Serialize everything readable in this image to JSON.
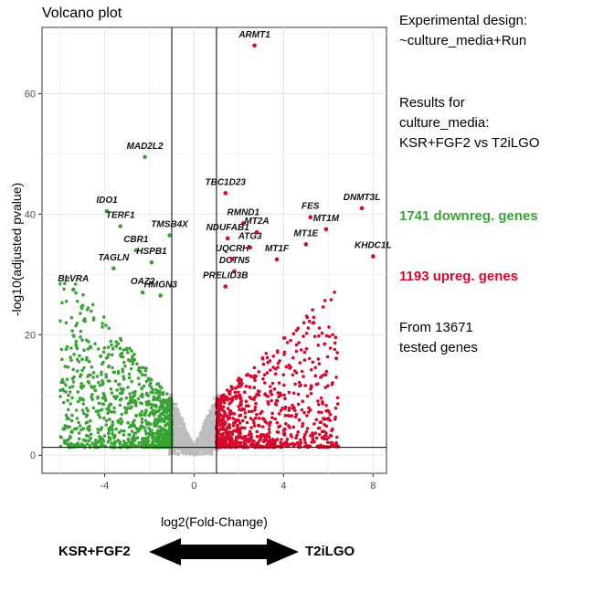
{
  "chart_data": {
    "type": "scatter",
    "title": "Volcano plot",
    "xlabel": "log2(Fold-Change)",
    "ylabel": "-log10(adjusted pvalue)",
    "xlim": [
      -6.8,
      8.6
    ],
    "ylim": [
      -3,
      71
    ],
    "xticks": [
      -4,
      0,
      4,
      8
    ],
    "yticks": [
      0,
      20,
      40,
      60
    ],
    "grid": true,
    "thresholds": {
      "fold_change_lines": [
        -1,
        1
      ],
      "pvalue_line": 1.3
    },
    "colors": {
      "down": "#3aa335",
      "up": "#d7082e",
      "ns": "#bdbdbd"
    },
    "labeled_genes": [
      {
        "gene": "ARMT1",
        "x": 2.7,
        "y": 68.0,
        "group": "up"
      },
      {
        "gene": "MAD2L2",
        "x": -2.2,
        "y": 49.5,
        "group": "down"
      },
      {
        "gene": "TBC1D23",
        "x": 1.4,
        "y": 43.5,
        "group": "up"
      },
      {
        "gene": "IDO1",
        "x": -3.9,
        "y": 40.5,
        "group": "down"
      },
      {
        "gene": "FES",
        "x": 5.2,
        "y": 39.5,
        "group": "up"
      },
      {
        "gene": "DNMT3L",
        "x": 7.5,
        "y": 41.0,
        "group": "up"
      },
      {
        "gene": "RMND1",
        "x": 2.2,
        "y": 38.5,
        "group": "up"
      },
      {
        "gene": "TMSB4X",
        "x": -1.1,
        "y": 36.5,
        "group": "down"
      },
      {
        "gene": "TERF1",
        "x": -3.3,
        "y": 38.0,
        "group": "down"
      },
      {
        "gene": "MT2A",
        "x": 2.8,
        "y": 37.0,
        "group": "up"
      },
      {
        "gene": "NDUFAB1",
        "x": 1.5,
        "y": 36.0,
        "group": "up"
      },
      {
        "gene": "MT1E",
        "x": 5.0,
        "y": 35.0,
        "group": "up"
      },
      {
        "gene": "MT1M",
        "x": 5.9,
        "y": 37.5,
        "group": "up"
      },
      {
        "gene": "CBR1",
        "x": -2.6,
        "y": 34.0,
        "group": "down"
      },
      {
        "gene": "ATG3",
        "x": 2.5,
        "y": 34.5,
        "group": "up"
      },
      {
        "gene": "UQCRH",
        "x": 1.7,
        "y": 32.5,
        "group": "up"
      },
      {
        "gene": "HSPB1",
        "x": -1.9,
        "y": 32.0,
        "group": "down"
      },
      {
        "gene": "MT1F",
        "x": 3.7,
        "y": 32.5,
        "group": "up"
      },
      {
        "gene": "TAGLN",
        "x": -3.6,
        "y": 31.0,
        "group": "down"
      },
      {
        "gene": "KHDC1L",
        "x": 8.0,
        "y": 33.0,
        "group": "up"
      },
      {
        "gene": "DCTN5",
        "x": 1.8,
        "y": 30.5,
        "group": "up"
      },
      {
        "gene": "PRELID3B",
        "x": 1.4,
        "y": 28.0,
        "group": "up"
      },
      {
        "gene": "BLVRA",
        "x": -5.4,
        "y": 27.5,
        "group": "down"
      },
      {
        "gene": "OAZ2",
        "x": -2.3,
        "y": 27.0,
        "group": "down"
      },
      {
        "gene": "HMGN3",
        "x": -1.5,
        "y": 26.5,
        "group": "down"
      }
    ],
    "summary": {
      "down_count": 1741,
      "up_count": 1193,
      "tested": 13671
    }
  },
  "panel": {
    "design_text": "Experimental design:\n~culture_media+Run",
    "results_text": "Results for\nculture_media:\nKSR+FGF2 vs T2iLGO",
    "down_text": "1741 downreg. genes",
    "up_text": "1193 upreg. genes",
    "tested_text": "From 13671\ntested genes"
  },
  "arrow": {
    "left_label": "KSR+FGF2",
    "right_label": "T2iLGO"
  }
}
